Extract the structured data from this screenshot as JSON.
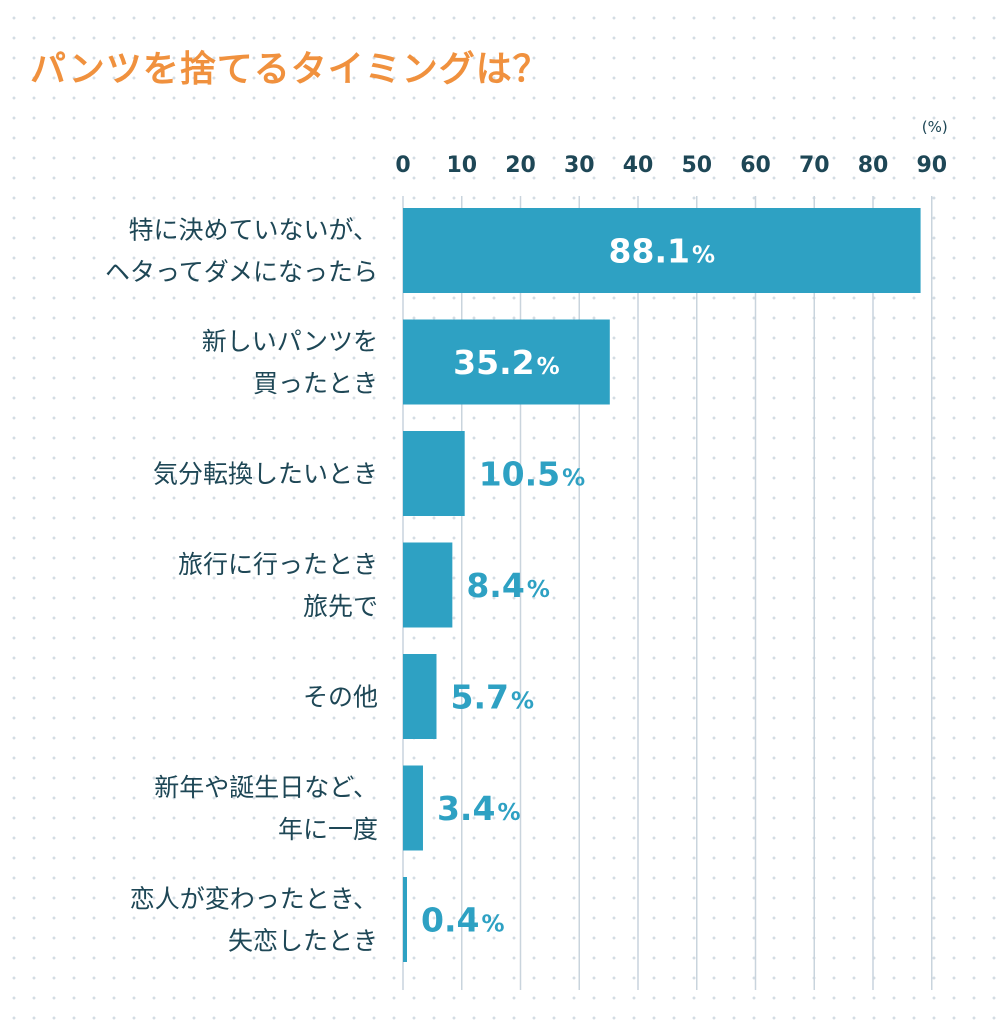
{
  "title": "パンツを捨てるタイミングは？",
  "colors": {
    "title": "#f0913e",
    "bar": "#2ea1c3",
    "text": "#1e4756",
    "grid": "#c9d4dd",
    "value_outside": "#2ea1c3",
    "value_inside": "#ffffff"
  },
  "chart_data": {
    "type": "bar",
    "orientation": "horizontal",
    "title": "パンツを捨てるタイミングは？",
    "unit": "(%)",
    "percent_suffix": "%",
    "xlim": [
      0,
      90
    ],
    "ticks": [
      0,
      10,
      20,
      30,
      40,
      50,
      60,
      70,
      80,
      90
    ],
    "tick_labels": [
      "0",
      "10",
      "20",
      "30",
      "40",
      "50",
      "60",
      "70",
      "80",
      "90"
    ],
    "axis_position": "top",
    "grid": true,
    "categories": [
      [
        "特に決めていないが、",
        "ヘタってダメになったら"
      ],
      [
        "新しいパンツを",
        "買ったとき"
      ],
      [
        "気分転換したいとき"
      ],
      [
        "旅行に行ったとき",
        "旅先で"
      ],
      [
        "その他"
      ],
      [
        "新年や誕生日など、",
        "年に一度"
      ],
      [
        "恋人が変わったとき、",
        "失恋したとき"
      ]
    ],
    "values": [
      88.1,
      35.2,
      10.5,
      8.4,
      5.7,
      3.4,
      0.4
    ],
    "value_labels": [
      "88.1",
      "35.2",
      "10.5",
      "8.4",
      "5.7",
      "3.4",
      "0.4"
    ]
  }
}
